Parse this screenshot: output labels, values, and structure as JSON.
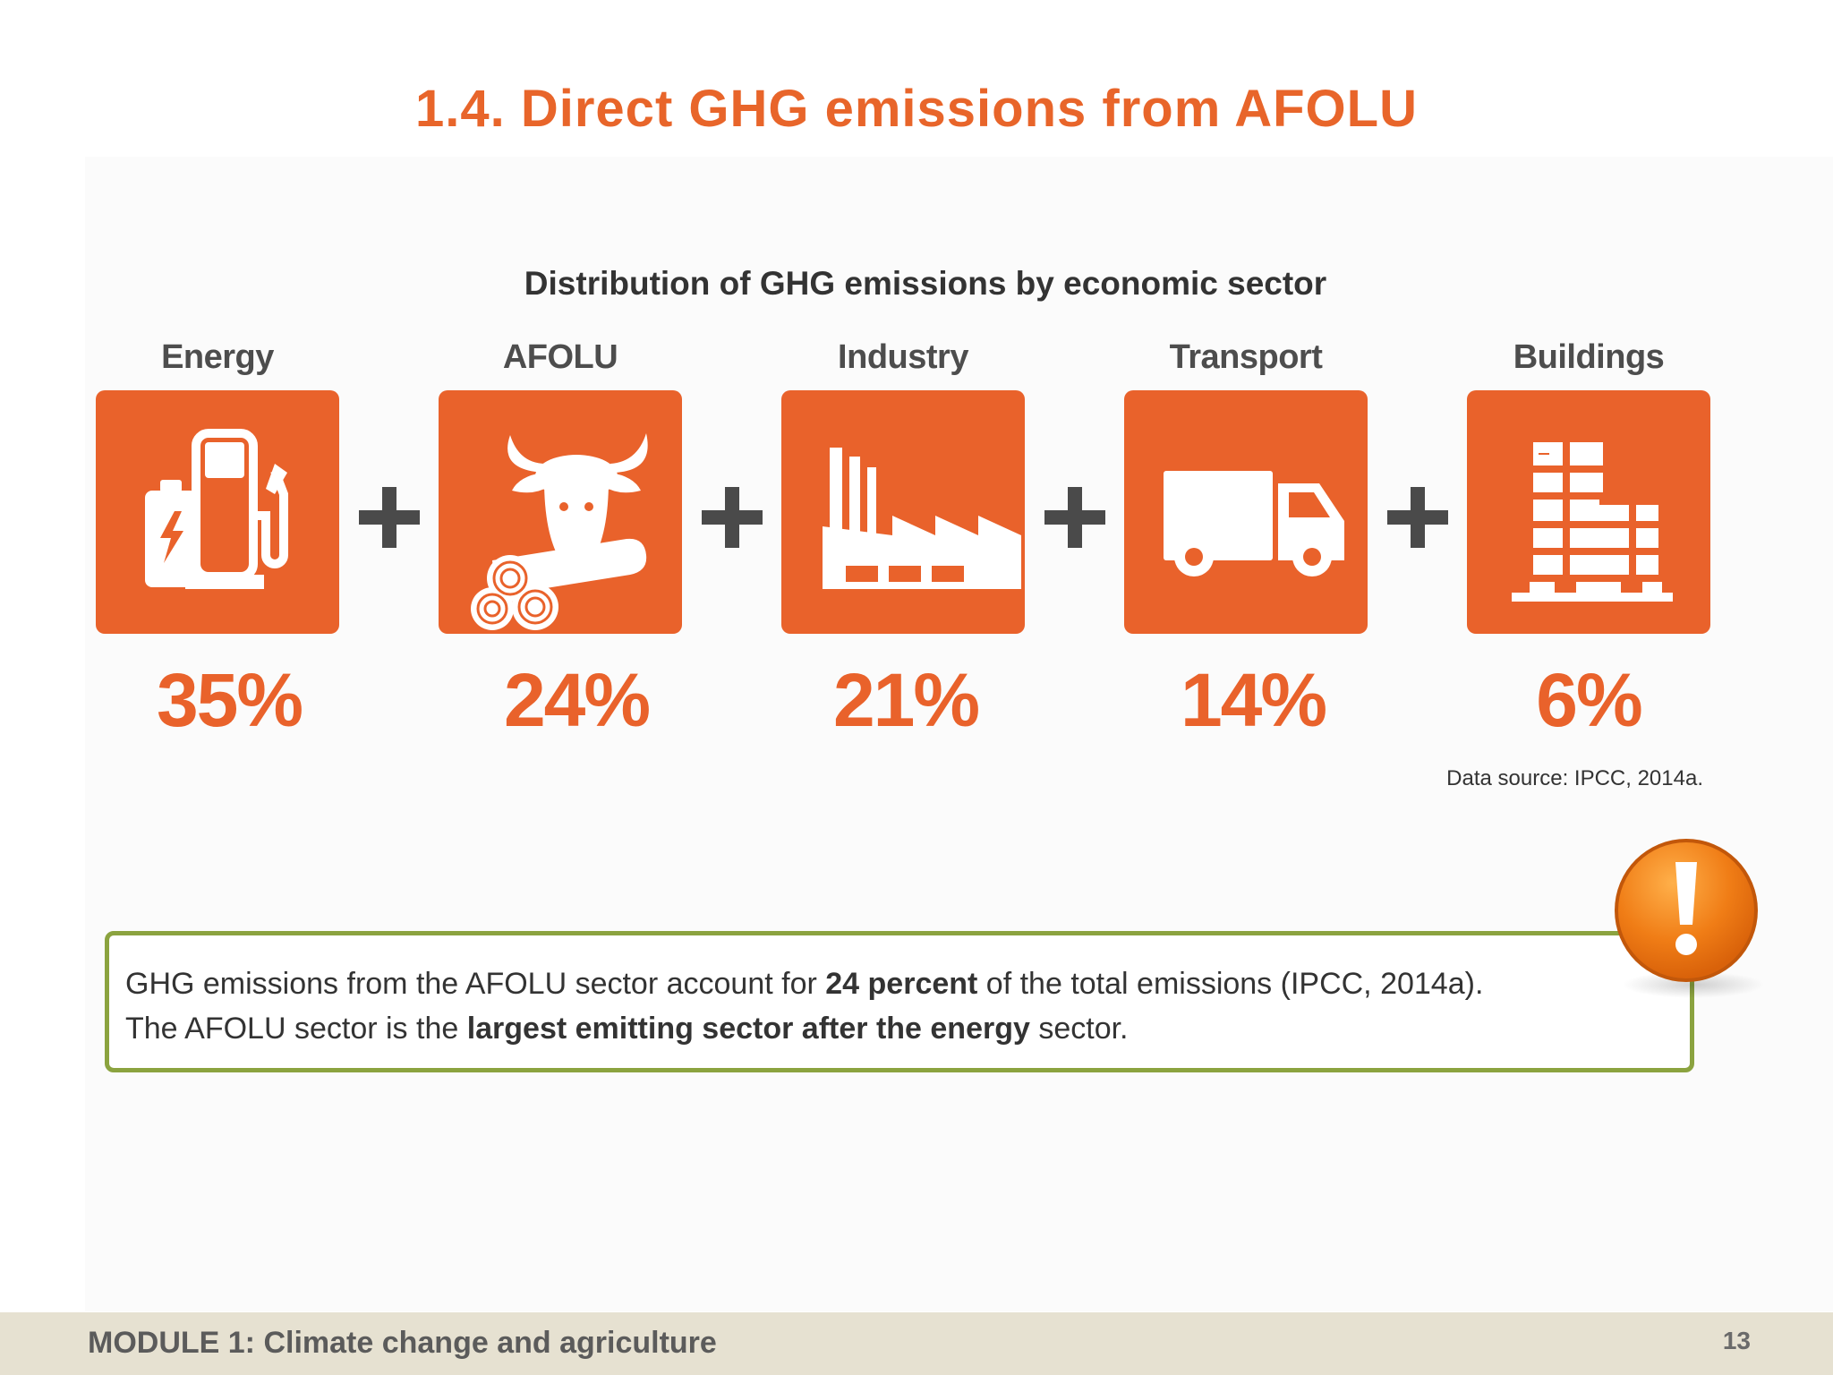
{
  "title": "1.4. Direct GHG emissions from AFOLU",
  "chart_data": {
    "type": "table",
    "title": "Distribution of GHG emissions by economic sector",
    "categories": [
      "Energy",
      "AFOLU",
      "Industry",
      "Transport",
      "Buildings"
    ],
    "values": [
      35,
      24,
      21,
      14,
      6
    ],
    "value_labels": [
      "35%",
      "24%",
      "21%",
      "14%",
      "6%"
    ],
    "icons": [
      "fuel-pump-battery-icon",
      "cow-logs-icon",
      "factory-icon",
      "truck-icon",
      "building-icon"
    ],
    "source": "Data source: IPCC, 2014a."
  },
  "note": {
    "line1_a": "GHG emissions from the AFOLU sector account for ",
    "line1_bold": "24 percent",
    "line1_b": " of the total emissions (IPCC, 2014a).",
    "line2_a": "The AFOLU sector is the ",
    "line2_bold": "largest emitting sector after the energy",
    "line2_b": " sector."
  },
  "footer": {
    "module": "MODULE 1: Climate change and agriculture",
    "page": "13"
  },
  "colors": {
    "accent": "#e9622b",
    "note_border": "#8ba33f",
    "plus": "#4a4a4a",
    "footer_bg": "#e6e1d1",
    "alert": "#f07d16"
  }
}
